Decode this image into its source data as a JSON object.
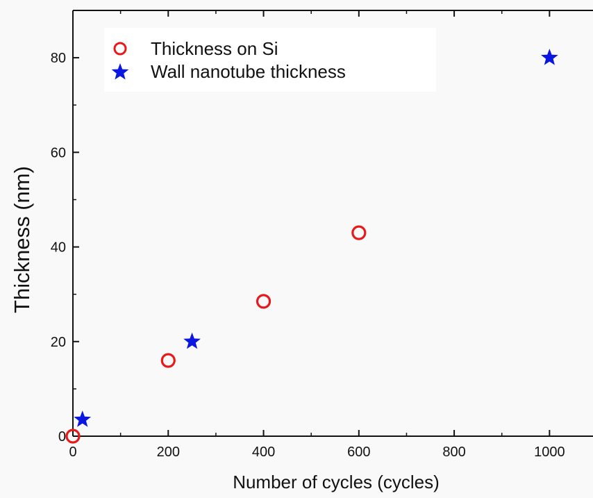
{
  "chart_data": {
    "type": "scatter",
    "title": "",
    "xlabel": "Number of cycles (cycles)",
    "ylabel": "Thickness (nm)",
    "xlim": [
      0,
      1100
    ],
    "ylim": [
      0,
      90
    ],
    "x_ticks": [
      0,
      200,
      400,
      600,
      800,
      1000
    ],
    "y_ticks": [
      0,
      20,
      40,
      60,
      80
    ],
    "grid": false,
    "legend_position": "top-left",
    "series": [
      {
        "name": "Thickness on Si",
        "marker": "open-circle",
        "color": "#e8191a",
        "x": [
          0,
          200,
          400,
          600
        ],
        "y": [
          0,
          16,
          28.5,
          43
        ]
      },
      {
        "name": "Wall nanotube thickness",
        "marker": "star",
        "color": "#0b16e0",
        "x": [
          20,
          250,
          1000
        ],
        "y": [
          3.5,
          20,
          80
        ]
      }
    ]
  }
}
